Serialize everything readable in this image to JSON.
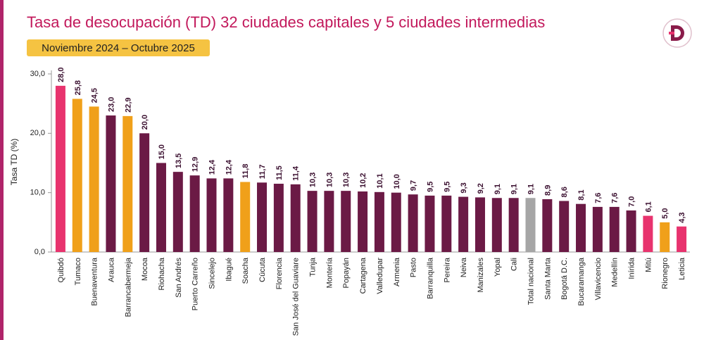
{
  "chart_data": {
    "type": "bar",
    "title": "Tasa de desocupación (TD) 32 ciudades capitales y 5 ciudades intermedias",
    "subtitle": "Noviembre 2024 – Octubre 2025",
    "y_label": "Tasa TD (%)",
    "categories": [
      "Quibdó",
      "Tumaco",
      "Buenaventura",
      "Arauca",
      "Barrancabermeja",
      "Mocoa",
      "Riohacha",
      "San Andrés",
      "Puerto Carreño",
      "Sincelejo",
      "Ibagué",
      "Soacha",
      "Cúcuta",
      "Florencia",
      "San José del Guaviare",
      "Tunja",
      "Montería",
      "Popayán",
      "Cartagena",
      "Valledupar",
      "Armenia",
      "Pasto",
      "Barranquilla",
      "Pereira",
      "Neiva",
      "Manizales",
      "Yopal",
      "Cali",
      "Total nacional",
      "Santa Marta",
      "Bogotá D.C.",
      "Bucaramanga",
      "Villavicencio",
      "Medellín",
      "Inírida",
      "Mitú",
      "Rionegro",
      "Leticia"
    ],
    "values": [
      28.0,
      25.8,
      24.5,
      23.0,
      22.9,
      20.0,
      15.0,
      13.5,
      12.9,
      12.4,
      12.4,
      11.8,
      11.7,
      11.5,
      11.4,
      10.3,
      10.3,
      10.3,
      10.2,
      10.1,
      10.0,
      9.7,
      9.5,
      9.5,
      9.3,
      9.2,
      9.1,
      9.1,
      9.1,
      8.9,
      8.6,
      8.1,
      7.6,
      7.6,
      7.0,
      6.1,
      5.0,
      4.3
    ],
    "value_labels": [
      "28,0",
      "25,8",
      "24,5",
      "23,0",
      "22,9",
      "20,0",
      "15,0",
      "13,5",
      "12,9",
      "12,4",
      "12,4",
      "11,8",
      "11,7",
      "11,5",
      "11,4",
      "10,3",
      "10,3",
      "10,3",
      "10,2",
      "10,1",
      "10,0",
      "9,7",
      "9,5",
      "9,5",
      "9,3",
      "9,2",
      "9,1",
      "9,1",
      "9,1",
      "8,9",
      "8,6",
      "8,1",
      "7,6",
      "7,6",
      "7,0",
      "6,1",
      "5,0",
      "4,3"
    ],
    "colors": [
      "#e8336e",
      "#f0a01a",
      "#f0a01a",
      "#6b1a45",
      "#f0a01a",
      "#6b1a45",
      "#6b1a45",
      "#6b1a45",
      "#6b1a45",
      "#6b1a45",
      "#6b1a45",
      "#f0a01a",
      "#6b1a45",
      "#6b1a45",
      "#6b1a45",
      "#6b1a45",
      "#6b1a45",
      "#6b1a45",
      "#6b1a45",
      "#6b1a45",
      "#6b1a45",
      "#6b1a45",
      "#6b1a45",
      "#6b1a45",
      "#6b1a45",
      "#6b1a45",
      "#6b1a45",
      "#6b1a45",
      "#a6a6a6",
      "#6b1a45",
      "#6b1a45",
      "#6b1a45",
      "#6b1a45",
      "#6b1a45",
      "#6b1a45",
      "#e8336e",
      "#f0a01a",
      "#e8336e"
    ],
    "ylim": [
      0,
      30
    ],
    "yticks": [
      {
        "value": 0,
        "label": "0,0"
      },
      {
        "value": 10,
        "label": "10,0"
      },
      {
        "value": 20,
        "label": "20,0"
      },
      {
        "value": 30,
        "label": "30,0"
      }
    ],
    "grid": false
  }
}
